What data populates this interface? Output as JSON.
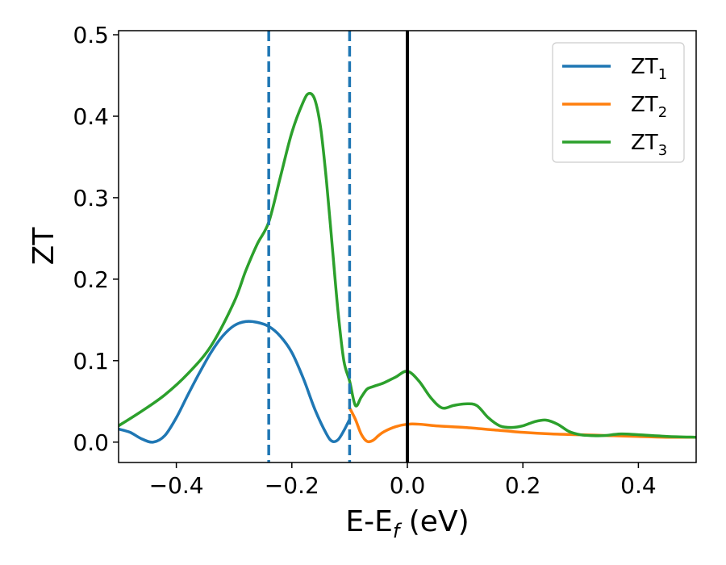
{
  "chart_data": {
    "type": "line",
    "xlabel": {
      "main": "E-E",
      "sub": "f",
      "unit": " (eV)"
    },
    "ylabel": "ZT",
    "xlim": [
      -0.5,
      0.5
    ],
    "ylim": [
      -0.025,
      0.505
    ],
    "x_ticks": [
      {
        "value": -0.4,
        "label": "−0.4"
      },
      {
        "value": -0.2,
        "label": "−0.2"
      },
      {
        "value": 0.0,
        "label": "0.0"
      },
      {
        "value": 0.2,
        "label": "0.2"
      },
      {
        "value": 0.4,
        "label": "0.4"
      }
    ],
    "y_ticks": [
      {
        "value": 0.0,
        "label": "0.0"
      },
      {
        "value": 0.1,
        "label": "0.1"
      },
      {
        "value": 0.2,
        "label": "0.2"
      },
      {
        "value": 0.3,
        "label": "0.3"
      },
      {
        "value": 0.4,
        "label": "0.4"
      },
      {
        "value": 0.5,
        "label": "0.5"
      }
    ],
    "grid": false,
    "legend_position": "top-right",
    "vlines": [
      {
        "x": -0.24,
        "style": "dashed",
        "color": "#1f77b4"
      },
      {
        "x": -0.1,
        "style": "dashed",
        "color": "#1f77b4"
      },
      {
        "x": 0.0,
        "style": "solid",
        "color": "#000000"
      }
    ],
    "series": [
      {
        "name": "ZT",
        "sub": "1",
        "color": "#1f77b4",
        "x": [
          -0.5,
          -0.48,
          -0.46,
          -0.44,
          -0.42,
          -0.4,
          -0.38,
          -0.36,
          -0.34,
          -0.32,
          -0.3,
          -0.28,
          -0.26,
          -0.24,
          -0.22,
          -0.2,
          -0.18,
          -0.16,
          -0.14,
          -0.13,
          -0.12,
          -0.11,
          -0.1
        ],
        "y": [
          0.016,
          0.012,
          0.004,
          0.0,
          0.008,
          0.03,
          0.058,
          0.085,
          0.11,
          0.13,
          0.143,
          0.148,
          0.147,
          0.142,
          0.13,
          0.11,
          0.078,
          0.04,
          0.01,
          0.001,
          0.003,
          0.014,
          0.028
        ]
      },
      {
        "name": "ZT",
        "sub": "2",
        "color": "#ff7f0e",
        "x": [
          -0.1,
          -0.09,
          -0.08,
          -0.07,
          -0.06,
          -0.05,
          -0.04,
          -0.02,
          0.0,
          0.02,
          0.05,
          0.1,
          0.15,
          0.2,
          0.25,
          0.3,
          0.35,
          0.4,
          0.45,
          0.5
        ],
        "y": [
          0.042,
          0.028,
          0.01,
          0.001,
          0.002,
          0.008,
          0.013,
          0.019,
          0.022,
          0.022,
          0.02,
          0.018,
          0.015,
          0.012,
          0.01,
          0.009,
          0.008,
          0.007,
          0.006,
          0.006
        ]
      },
      {
        "name": "ZT",
        "sub": "3",
        "color": "#2ca02c",
        "x": [
          -0.5,
          -0.46,
          -0.42,
          -0.38,
          -0.34,
          -0.3,
          -0.28,
          -0.26,
          -0.24,
          -0.22,
          -0.2,
          -0.18,
          -0.17,
          -0.16,
          -0.15,
          -0.14,
          -0.13,
          -0.12,
          -0.11,
          -0.1,
          -0.09,
          -0.08,
          -0.07,
          -0.06,
          -0.04,
          -0.02,
          0.0,
          0.02,
          0.04,
          0.06,
          0.08,
          0.1,
          0.12,
          0.14,
          0.16,
          0.18,
          0.2,
          0.22,
          0.24,
          0.26,
          0.28,
          0.3,
          0.32,
          0.34,
          0.37,
          0.4,
          0.45,
          0.5
        ],
        "y": [
          0.02,
          0.038,
          0.058,
          0.084,
          0.118,
          0.172,
          0.21,
          0.243,
          0.27,
          0.325,
          0.38,
          0.418,
          0.428,
          0.42,
          0.385,
          0.32,
          0.24,
          0.16,
          0.1,
          0.075,
          0.045,
          0.055,
          0.065,
          0.068,
          0.073,
          0.08,
          0.087,
          0.075,
          0.055,
          0.042,
          0.045,
          0.047,
          0.045,
          0.03,
          0.02,
          0.018,
          0.02,
          0.025,
          0.027,
          0.022,
          0.013,
          0.009,
          0.008,
          0.008,
          0.01,
          0.009,
          0.007,
          0.006
        ]
      }
    ]
  }
}
